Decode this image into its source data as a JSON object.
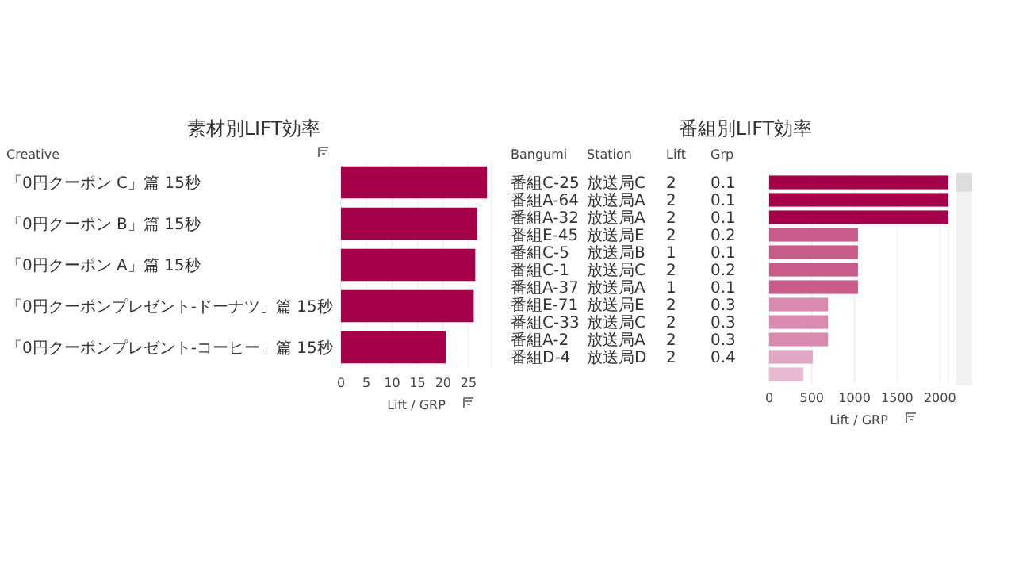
{
  "chart_data": [
    {
      "type": "bar",
      "orientation": "horizontal",
      "title": "素材別LIFT効率",
      "ylabel": "Creative",
      "xlabel": "Lift / GRP",
      "categories": [
        "「0円クーポン C」篇 15秒",
        "「0円クーポン B」篇 15秒",
        "「0円クーポン A」篇 15秒",
        "「0円クーポンプレゼント-ドーナツ」篇 15秒",
        "「0円クーポンプレゼント-コーヒー」篇 15秒"
      ],
      "values": [
        28.6,
        26.7,
        26.3,
        26.0,
        20.5
      ],
      "color": "#a5004a",
      "xlim": [
        0,
        29.5
      ],
      "xticks": [
        0,
        5,
        10,
        15,
        20,
        25
      ],
      "grid": "x"
    },
    {
      "type": "heatmap",
      "title": "番組別LIFT効率",
      "ylabel": "Bangumi",
      "y2label": "Station",
      "categories": [
        "Lift",
        "Grp"
      ],
      "y_categories": [
        "番組C-25",
        "番組A-64",
        "番組A-32",
        "番組E-45",
        "番組C-5",
        "番組C-1",
        "番組A-37",
        "番組E-71",
        "番組C-33",
        "番組A-2",
        "番組D-4"
      ],
      "y2_categories": [
        "放送局C",
        "放送局A",
        "放送局A",
        "放送局E",
        "放送局B",
        "放送局C",
        "放送局A",
        "放送局E",
        "放送局C",
        "放送局A",
        "放送局D"
      ],
      "cells": [
        [
          2,
          0.1
        ],
        [
          2,
          0.1
        ],
        [
          2,
          0.1
        ],
        [
          2,
          0.2
        ],
        [
          1,
          0.1
        ],
        [
          2,
          0.2
        ],
        [
          1,
          0.1
        ],
        [
          2,
          0.3
        ],
        [
          2,
          0.3
        ],
        [
          2,
          0.3
        ],
        [
          2,
          0.4
        ]
      ],
      "data_labels": true
    },
    {
      "type": "bar",
      "orientation": "horizontal",
      "xlabel": "Lift / GRP",
      "categories": [
        null,
        null,
        null,
        null,
        null,
        null,
        null,
        null,
        null,
        null,
        null,
        null
      ],
      "values": [
        2100,
        2100,
        2100,
        1040,
        1040,
        1040,
        1040,
        690,
        690,
        690,
        510,
        400
      ],
      "colors": [
        "#a5004a",
        "#a5004a",
        "#a5004a",
        "#c95b8b",
        "#c95b8b",
        "#c95b8b",
        "#c95b8b",
        "#d98aae",
        "#d98aae",
        "#d98aae",
        "#e0a6c2",
        "#e6b9cf"
      ],
      "xlim": [
        0,
        2100
      ],
      "xticks": [
        0,
        500,
        1000,
        1500,
        2000
      ],
      "grid": "x"
    }
  ]
}
